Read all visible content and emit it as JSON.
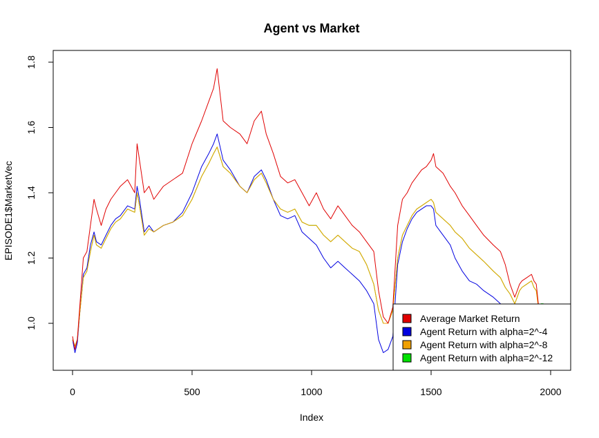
{
  "chart_data": {
    "type": "line",
    "title": "Agent vs Market",
    "xlabel": "Index",
    "ylabel": "EPISODE1$MarketVec",
    "xlim": [
      0,
      2000
    ],
    "ylim": [
      0.86,
      1.8
    ],
    "x_ticks": [
      0,
      500,
      1000,
      1500,
      2000
    ],
    "y_ticks": [
      1.0,
      1.2,
      1.4,
      1.6,
      1.8
    ],
    "x_tick_labels": [
      "0",
      "500",
      "1000",
      "1500",
      "2000"
    ],
    "y_tick_labels": [
      "1.0",
      "1.2",
      "1.4",
      "1.6",
      "1.8"
    ],
    "grid": false,
    "legend_position": "bottom-right",
    "series": [
      {
        "name": "Average Market Return",
        "color": "#e00000",
        "x": [
          0,
          10,
          20,
          30,
          45,
          60,
          75,
          90,
          100,
          120,
          140,
          160,
          180,
          200,
          230,
          260,
          270,
          280,
          300,
          320,
          340,
          380,
          420,
          460,
          500,
          540,
          570,
          590,
          605,
          630,
          660,
          700,
          730,
          760,
          790,
          810,
          840,
          870,
          900,
          930,
          960,
          990,
          1020,
          1050,
          1080,
          1110,
          1140,
          1170,
          1200,
          1230,
          1260,
          1280,
          1300,
          1320,
          1340,
          1360,
          1380,
          1400,
          1420,
          1440,
          1460,
          1480,
          1500,
          1510,
          1520,
          1550,
          1580,
          1600,
          1630,
          1660,
          1690,
          1720,
          1760,
          1790,
          1810,
          1830,
          1850,
          1860,
          1870,
          1880,
          1900,
          1920,
          1930,
          1940,
          1950
        ],
        "y": [
          0.96,
          0.92,
          0.95,
          1.05,
          1.2,
          1.22,
          1.3,
          1.38,
          1.35,
          1.3,
          1.35,
          1.38,
          1.4,
          1.42,
          1.44,
          1.4,
          1.55,
          1.5,
          1.4,
          1.42,
          1.38,
          1.42,
          1.44,
          1.46,
          1.55,
          1.62,
          1.68,
          1.72,
          1.78,
          1.62,
          1.6,
          1.58,
          1.55,
          1.62,
          1.65,
          1.58,
          1.52,
          1.45,
          1.43,
          1.44,
          1.4,
          1.36,
          1.4,
          1.35,
          1.32,
          1.36,
          1.33,
          1.3,
          1.28,
          1.25,
          1.22,
          1.1,
          1.02,
          1.0,
          1.05,
          1.3,
          1.38,
          1.4,
          1.43,
          1.45,
          1.47,
          1.48,
          1.5,
          1.52,
          1.48,
          1.46,
          1.42,
          1.4,
          1.36,
          1.33,
          1.3,
          1.27,
          1.24,
          1.22,
          1.18,
          1.12,
          1.08,
          1.1,
          1.12,
          1.13,
          1.14,
          1.15,
          1.13,
          1.12,
          1.05
        ]
      },
      {
        "name": "Agent Return with alpha=2^-4",
        "color": "#0000e0",
        "x": [
          0,
          10,
          20,
          30,
          45,
          60,
          75,
          90,
          100,
          120,
          140,
          160,
          180,
          200,
          230,
          260,
          270,
          280,
          300,
          320,
          340,
          380,
          420,
          460,
          500,
          540,
          570,
          590,
          605,
          630,
          660,
          700,
          730,
          760,
          790,
          810,
          840,
          870,
          900,
          930,
          960,
          990,
          1020,
          1050,
          1080,
          1110,
          1140,
          1170,
          1200,
          1230,
          1260,
          1280,
          1300,
          1320,
          1340,
          1360,
          1380,
          1400,
          1420,
          1440,
          1460,
          1480,
          1500,
          1510,
          1520,
          1550,
          1580,
          1600,
          1630,
          1660,
          1690,
          1720,
          1760,
          1790,
          1810,
          1830,
          1850
        ],
        "y": [
          0.95,
          0.91,
          0.94,
          1.03,
          1.15,
          1.17,
          1.24,
          1.28,
          1.25,
          1.24,
          1.27,
          1.3,
          1.32,
          1.33,
          1.36,
          1.35,
          1.42,
          1.38,
          1.28,
          1.3,
          1.28,
          1.3,
          1.31,
          1.34,
          1.4,
          1.48,
          1.52,
          1.55,
          1.58,
          1.5,
          1.47,
          1.42,
          1.4,
          1.45,
          1.47,
          1.44,
          1.38,
          1.33,
          1.32,
          1.33,
          1.28,
          1.26,
          1.24,
          1.2,
          1.17,
          1.19,
          1.17,
          1.15,
          1.13,
          1.1,
          1.06,
          0.95,
          0.91,
          0.92,
          0.96,
          1.18,
          1.25,
          1.29,
          1.32,
          1.34,
          1.35,
          1.36,
          1.36,
          1.35,
          1.3,
          1.27,
          1.24,
          1.2,
          1.16,
          1.13,
          1.12,
          1.1,
          1.08,
          1.06,
          1.03,
          1.0,
          0.97
        ]
      },
      {
        "name": "Agent Return with alpha=2^-8",
        "color": "#f0a000",
        "x": [
          0,
          10,
          20,
          30,
          45,
          60,
          75,
          90,
          100,
          120,
          140,
          160,
          180,
          200,
          230,
          260,
          270,
          280,
          300,
          320,
          340,
          380,
          420,
          460,
          500,
          540,
          570,
          590,
          605,
          630,
          660,
          700,
          730,
          760,
          790,
          810,
          840,
          870,
          900,
          930,
          960,
          990,
          1020,
          1050,
          1080,
          1110,
          1140,
          1170,
          1200,
          1230,
          1260,
          1280,
          1300,
          1320,
          1340,
          1360,
          1380,
          1400,
          1420,
          1440,
          1460,
          1480,
          1500,
          1510,
          1520,
          1550,
          1580,
          1600,
          1630,
          1660,
          1690,
          1720,
          1760,
          1790,
          1810,
          1830,
          1850,
          1860,
          1870,
          1880,
          1900,
          1920,
          1930,
          1940,
          1950
        ],
        "y": [
          0.95,
          0.93,
          0.95,
          1.03,
          1.14,
          1.16,
          1.22,
          1.27,
          1.24,
          1.23,
          1.26,
          1.29,
          1.31,
          1.32,
          1.35,
          1.34,
          1.4,
          1.36,
          1.27,
          1.29,
          1.28,
          1.3,
          1.31,
          1.33,
          1.38,
          1.45,
          1.49,
          1.52,
          1.54,
          1.48,
          1.46,
          1.42,
          1.4,
          1.44,
          1.46,
          1.43,
          1.38,
          1.35,
          1.34,
          1.35,
          1.31,
          1.3,
          1.3,
          1.27,
          1.25,
          1.27,
          1.25,
          1.23,
          1.22,
          1.18,
          1.12,
          1.04,
          1.0,
          1.0,
          1.04,
          1.2,
          1.27,
          1.3,
          1.33,
          1.35,
          1.36,
          1.37,
          1.38,
          1.37,
          1.34,
          1.32,
          1.3,
          1.28,
          1.26,
          1.23,
          1.21,
          1.19,
          1.16,
          1.14,
          1.11,
          1.09,
          1.06,
          1.08,
          1.1,
          1.11,
          1.12,
          1.13,
          1.11,
          1.1,
          1.04
        ]
      },
      {
        "name": "Agent Return with alpha=2^-12",
        "color": "#00e000",
        "x": [
          0,
          10,
          20,
          30,
          45,
          60,
          75,
          90,
          100,
          120,
          140,
          160,
          180,
          200,
          230,
          260,
          270,
          280,
          300,
          320,
          340,
          380,
          420,
          460,
          500,
          540,
          570,
          590,
          605,
          630,
          660,
          700,
          730,
          760,
          790,
          810,
          840,
          870,
          900,
          930,
          960,
          990,
          1020,
          1050,
          1080,
          1110,
          1140,
          1170,
          1200,
          1230,
          1260,
          1280,
          1300,
          1320,
          1340,
          1360,
          1380,
          1400,
          1420,
          1440,
          1460,
          1480,
          1500,
          1510,
          1520,
          1550,
          1580,
          1600,
          1630,
          1660,
          1690,
          1720,
          1760,
          1790,
          1810,
          1830,
          1850,
          1860,
          1870,
          1880,
          1900,
          1920,
          1930,
          1940,
          1950,
          1960,
          1970
        ],
        "y": [
          0.95,
          0.93,
          0.95,
          1.03,
          1.14,
          1.16,
          1.22,
          1.27,
          1.24,
          1.23,
          1.26,
          1.29,
          1.31,
          1.32,
          1.35,
          1.34,
          1.4,
          1.36,
          1.27,
          1.29,
          1.28,
          1.3,
          1.31,
          1.33,
          1.38,
          1.45,
          1.49,
          1.52,
          1.54,
          1.48,
          1.46,
          1.42,
          1.4,
          1.44,
          1.46,
          1.43,
          1.38,
          1.35,
          1.34,
          1.35,
          1.31,
          1.3,
          1.3,
          1.27,
          1.25,
          1.27,
          1.25,
          1.23,
          1.22,
          1.18,
          1.12,
          1.04,
          1.0,
          1.0,
          1.04,
          1.2,
          1.27,
          1.3,
          1.33,
          1.35,
          1.36,
          1.37,
          1.38,
          1.37,
          1.34,
          1.32,
          1.3,
          1.28,
          1.26,
          1.23,
          1.21,
          1.19,
          1.16,
          1.14,
          1.11,
          1.09,
          1.06,
          1.08,
          1.1,
          1.11,
          1.12,
          1.13,
          1.11,
          1.1,
          1.05,
          1.06,
          1.06
        ]
      }
    ]
  }
}
